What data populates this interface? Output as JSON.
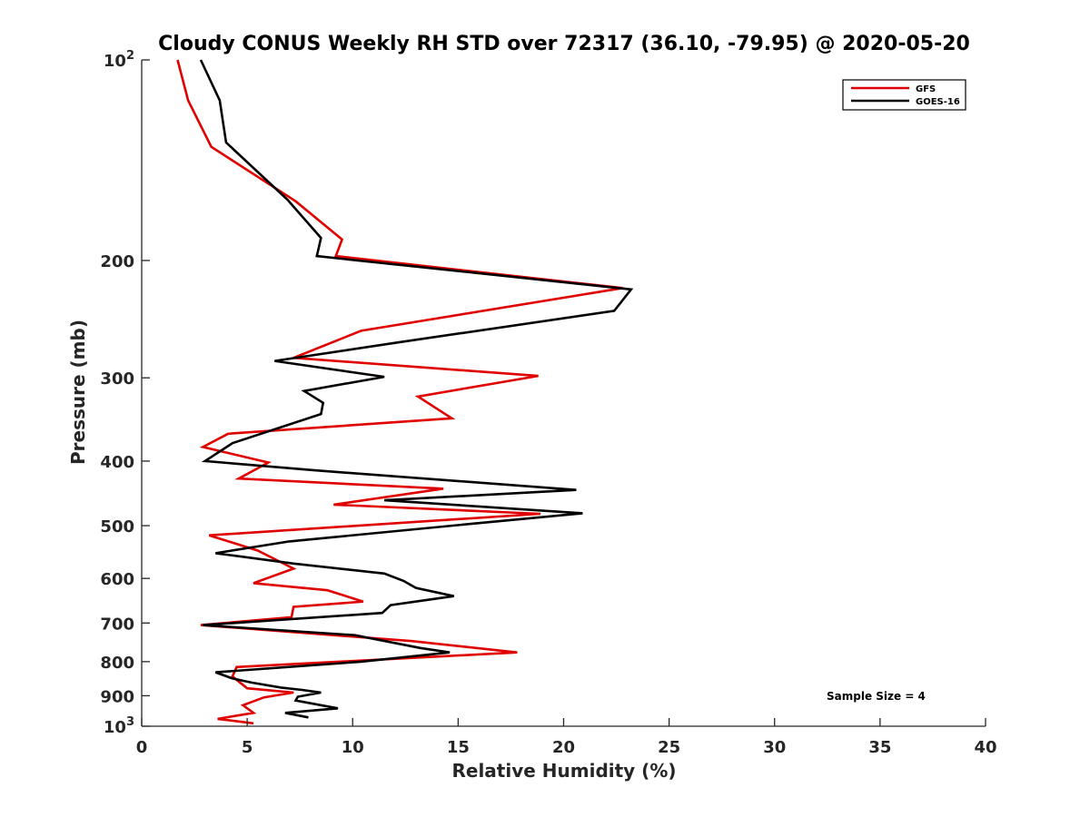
{
  "chart_data": {
    "type": "line",
    "title": "Cloudy CONUS Weekly RH STD over 72317 (36.10, -79.95) @ 2020-05-20",
    "xlabel": "Relative Humidity (%)",
    "ylabel": "Pressure (mb)",
    "xlim": [
      0,
      40
    ],
    "ylim": [
      100,
      1000
    ],
    "yscale": "log",
    "y_reversed": true,
    "grid": false,
    "legend_position": "top-right",
    "x_ticks": [
      "0",
      "5",
      "10",
      "15",
      "20",
      "25",
      "30",
      "35",
      "40"
    ],
    "y_ticks": [
      {
        "value": 100,
        "base": "10",
        "exp": "2"
      },
      {
        "value": 200,
        "label": "200"
      },
      {
        "value": 300,
        "label": "300"
      },
      {
        "value": 400,
        "label": "400"
      },
      {
        "value": 500,
        "label": "500"
      },
      {
        "value": 600,
        "label": "600"
      },
      {
        "value": 700,
        "label": "700"
      },
      {
        "value": 800,
        "label": "800"
      },
      {
        "value": 900,
        "label": "900"
      },
      {
        "value": 1000,
        "base": "10",
        "exp": "3"
      }
    ],
    "annotation": "Sample Size = 4",
    "series": [
      {
        "name": "GFS",
        "color": "#e00000",
        "x": [
          1.7,
          2.2,
          3.3,
          7.3,
          9.5,
          9.2,
          22.8,
          10.4,
          7.2,
          18.8,
          13.1,
          14.7,
          4.1,
          2.9,
          6.0,
          4.6,
          14.3,
          9.1,
          18.9,
          3.2,
          5.5,
          7.2,
          5.3,
          8.8,
          10.5,
          7.2,
          7.1,
          2.8,
          12.8,
          17.8,
          4.5,
          4.3,
          5.0,
          7.2,
          5.8,
          4.8,
          5.3,
          3.6,
          5.3
        ],
        "y": [
          100,
          115,
          135,
          163,
          186,
          197,
          220,
          255,
          280,
          298,
          320,
          345,
          364,
          381,
          402,
          425,
          440,
          465,
          480,
          517,
          545,
          580,
          610,
          625,
          650,
          662,
          686,
          705,
          745,
          775,
          815,
          842,
          877,
          890,
          905,
          930,
          955,
          975,
          990
        ]
      },
      {
        "name": "GOES-16",
        "color": "#000000",
        "x": [
          2.8,
          3.7,
          4.0,
          6.9,
          8.5,
          8.3,
          23.2,
          22.4,
          12.3,
          6.3,
          11.5,
          7.7,
          8.6,
          8.5,
          4.3,
          3.0,
          8.2,
          20.6,
          11.5,
          20.9,
          15.6,
          7.0,
          3.5,
          7.2,
          11.5,
          12.4,
          13.0,
          14.8,
          11.8,
          11.4,
          2.9,
          10.1,
          13.2,
          14.6,
          10.4,
          3.5,
          4.3,
          5.2,
          6.6,
          7.6,
          8.5,
          7.4,
          7.3,
          9.3,
          6.8,
          7.9
        ],
        "y": [
          100,
          115,
          133,
          162,
          185,
          197,
          221,
          238,
          265,
          283,
          299,
          314,
          327,
          340,
          376,
          400,
          413,
          442,
          458,
          479,
          497,
          528,
          550,
          570,
          590,
          605,
          620,
          638,
          658,
          676,
          705,
          730,
          763,
          775,
          800,
          830,
          848,
          860,
          875,
          882,
          890,
          903,
          915,
          940,
          955,
          970
        ]
      }
    ]
  }
}
